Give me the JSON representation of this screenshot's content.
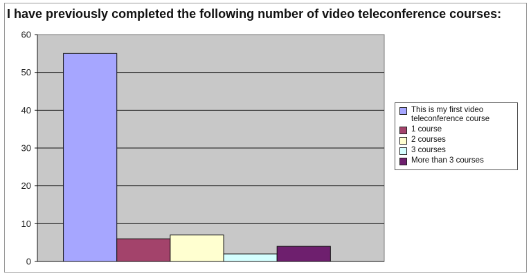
{
  "chart_data": {
    "type": "bar",
    "title": "I have previously completed the following number of video teleconference courses:",
    "categories": [
      ""
    ],
    "series": [
      {
        "name": "This is my first video teleconference course",
        "values": [
          55
        ],
        "color": "#a6a6ff"
      },
      {
        "name": "1 course",
        "values": [
          6
        ],
        "color": "#a3436b"
      },
      {
        "name": "2 courses",
        "values": [
          7
        ],
        "color": "#ffffd0"
      },
      {
        "name": "3 courses",
        "values": [
          2
        ],
        "color": "#d4ffff"
      },
      {
        "name": "More than 3 courses",
        "values": [
          4
        ],
        "color": "#6e1f6e"
      }
    ],
    "xlabel": "",
    "ylabel": "",
    "ylim": [
      0,
      60
    ],
    "yticks": [
      "0",
      "10",
      "20",
      "30",
      "40",
      "50",
      "60"
    ],
    "grid": true,
    "legend": "right",
    "plot_background": "#c8c8c8"
  }
}
